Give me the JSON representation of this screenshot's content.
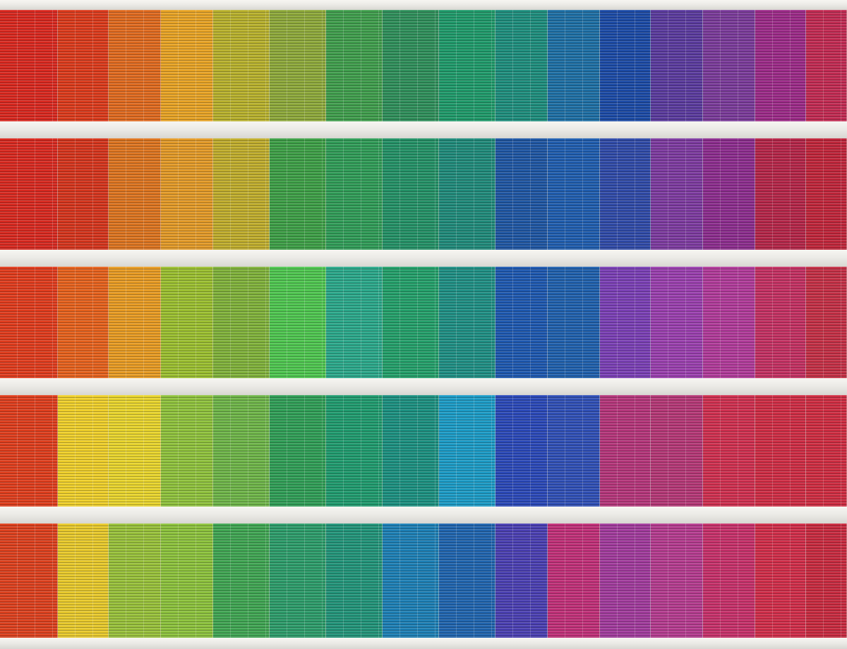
{
  "image": {
    "subject": "building-facade-with-rainbow-window-blinds",
    "ledge_color": "#ecebe7"
  },
  "rows": [
    {
      "panels": [
        "#d9271e",
        "#dc3a1b",
        "#e06a1e",
        "#e8a324",
        "#b8b12c",
        "#8ea93a",
        "#3f9e4c",
        "#2e8f5a",
        "#1e9a6a",
        "#1d8e7d",
        "#1d6fa5",
        "#1b4aa6",
        "#5a3a9e",
        "#7a3a9a",
        "#9c2a88",
        "#c22a52"
      ]
    },
    {
      "panels": [
        "#d8281f",
        "#d5341c",
        "#dd741f",
        "#e39a27",
        "#c0ad2c",
        "#3d9f46",
        "#2f9c57",
        "#239166",
        "#1f8a7a",
        "#1e56a3",
        "#1f5daf",
        "#2f4aa8",
        "#7d3aa0",
        "#8c2c8e",
        "#b52548",
        "#c0253a"
      ]
    },
    {
      "panels": [
        "#e03b1c",
        "#e6611c",
        "#e89b22",
        "#9bbf2f",
        "#80b23a",
        "#4ec64f",
        "#2aa88a",
        "#23a06a",
        "#1e8f84",
        "#1d58b0",
        "#1f60ad",
        "#7a3fb5",
        "#9a3fae",
        "#b13a9a",
        "#c43062",
        "#c42f45"
      ]
    },
    {
      "panels": [
        "#df3d1c",
        "#efcf2a",
        "#e8d42c",
        "#8fc23c",
        "#6eb548",
        "#2f9e56",
        "#1f9b6e",
        "#1b9080",
        "#1b9bc6",
        "#2a48b8",
        "#2f4fb6",
        "#b5357a",
        "#b53776",
        "#d02f4f",
        "#cf2c44",
        "#cf2c41"
      ]
    },
    {
      "panels": [
        "#dd401d",
        "#e8c92b",
        "#98c13a",
        "#8cc23c",
        "#3fa552",
        "#2c9c6a",
        "#219479",
        "#1c7fb5",
        "#1f64ae",
        "#4a3fb2",
        "#c12f78",
        "#a13a9c",
        "#b53b8f",
        "#c7306a",
        "#d12d49",
        "#c82a3f"
      ]
    }
  ],
  "column_widths": [
    82,
    72,
    74,
    74,
    80,
    80,
    80,
    80,
    80,
    74,
    74,
    72,
    74,
    74,
    72,
    58
  ]
}
